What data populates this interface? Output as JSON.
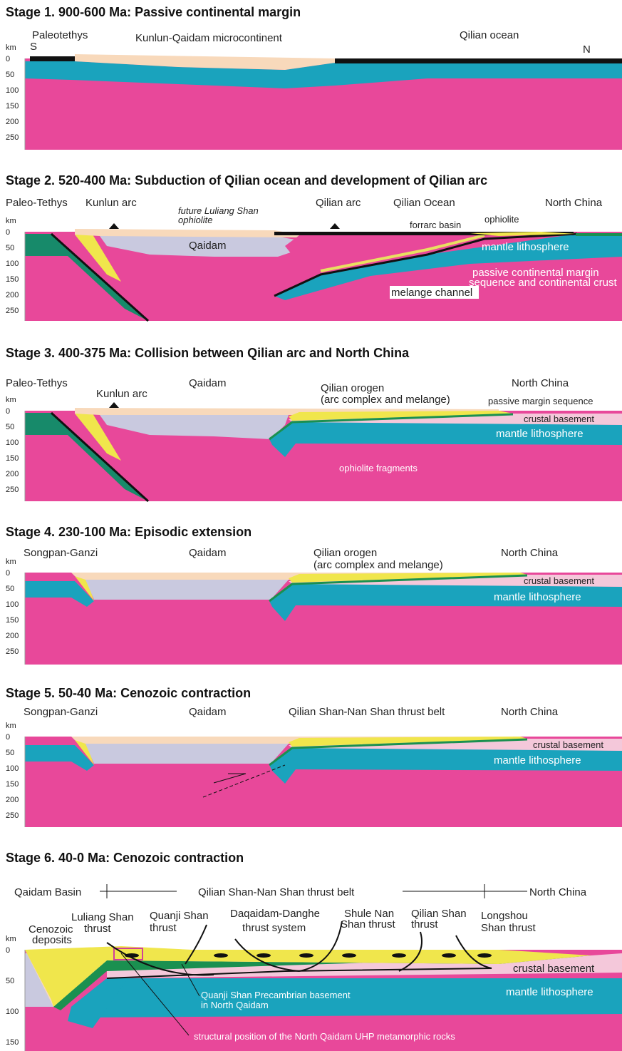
{
  "stages": [
    {
      "title": "Stage 1. 900-600 Ma: Passive continental margin",
      "depth": [
        "km",
        "0",
        "50",
        "100",
        "150",
        "200",
        "250"
      ],
      "labels": [
        "Paleotethys",
        "S",
        "Kunlun-Qaidam microcontinent",
        "Qilian ocean",
        "N"
      ]
    },
    {
      "title": "Stage 2. 520-400 Ma: Subduction of Qilian ocean and development of Qilian arc",
      "depth": [
        "km",
        "0",
        "50",
        "100",
        "150",
        "200",
        "250"
      ],
      "labels": [
        "Paleo-Tethys",
        "Kunlun arc",
        "future Luliang Shan",
        "ophiolite",
        "Qaidam",
        "Qilian arc",
        "Qilian Ocean",
        "North China",
        "forrarc basin",
        "ophiolite",
        "mantle lithosphere",
        "passive continental margin",
        "sequence and continental crust",
        "melange channel"
      ]
    },
    {
      "title": "Stage 3. 400-375 Ma: Collision between Qilian arc and North China",
      "depth": [
        "km",
        "0",
        "50",
        "100",
        "150",
        "200",
        "250"
      ],
      "labels": [
        "Paleo-Tethys",
        "Kunlun arc",
        "Qaidam",
        "Qilian orogen",
        "(arc complex and melange)",
        "North China",
        "passive margin sequence",
        "crustal basement",
        "mantle lithosphere",
        "ophiolite fragments"
      ]
    },
    {
      "title": "Stage 4. 230-100 Ma: Episodic extension",
      "depth": [
        "km",
        "0",
        "50",
        "100",
        "150",
        "200",
        "250"
      ],
      "labels": [
        "Songpan-Ganzi",
        "Qaidam",
        "Qilian orogen",
        "(arc complex and melange)",
        "North China",
        "crustal basement",
        "mantle lithosphere"
      ]
    },
    {
      "title": "Stage 5. 50-40 Ma: Cenozoic contraction",
      "depth": [
        "km",
        "0",
        "50",
        "100",
        "150",
        "200",
        "250"
      ],
      "labels": [
        "Songpan-Ganzi",
        "Qaidam",
        "Qilian Shan-Nan Shan thrust belt",
        "North China",
        "crustal basement",
        "mantle lithosphere"
      ]
    },
    {
      "title": "Stage 6. 40-0 Ma: Cenozoic contraction",
      "depth": [
        "km",
        "0",
        "50",
        "100",
        "150"
      ],
      "labels": [
        "Qaidam Basin",
        "Qilian Shan-Nan Shan thrust belt",
        "North China",
        "Cenozoic",
        "deposits",
        "Luliang Shan",
        "thrust",
        "Quanji Shan",
        "thrust",
        "Daqaidam-Danghe",
        "thrust system",
        "Shule Nan",
        "Shan  thrust",
        "Qilian Shan",
        "thrust",
        "Longshou",
        "Shan thrust",
        "crustal basement",
        "mantle lithosphere",
        "Quanji Shan Precambrian basement",
        "in North Qaidam",
        "structural position of the North Qaidam UHP metamorphic rocks"
      ]
    }
  ]
}
